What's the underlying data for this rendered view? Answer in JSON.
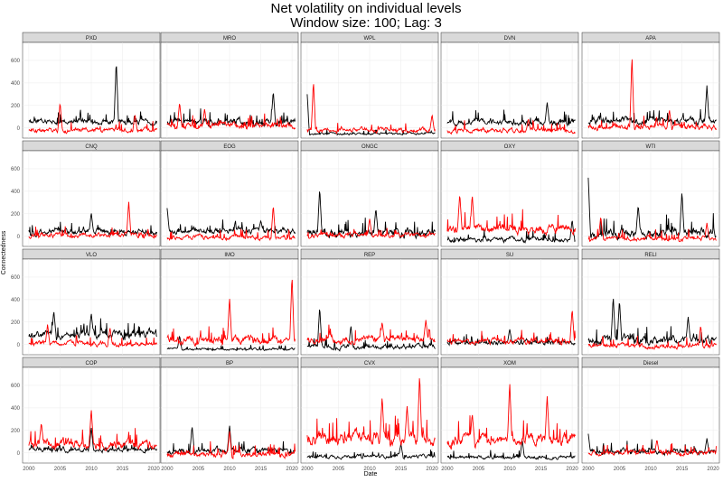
{
  "title_line1": "Net volatility on individual levels",
  "title_line2": "Window size: 100; Lag: 3",
  "xlabel": "Date",
  "ylabel": "Connectedness",
  "colors": {
    "series_a": "#000000",
    "series_b": "#ff0000",
    "strip": "#d9d9d9",
    "grid": "#ebebeb"
  },
  "chart_data": {
    "type": "line",
    "facet_layout": "4 rows x 5 columns, shared axes",
    "x_range": [
      1999,
      2021
    ],
    "y_range": [
      -90,
      760
    ],
    "x_ticks": [
      "2000",
      "2005",
      "2010",
      "2015",
      "2020"
    ],
    "y_ticks": [
      "0",
      "200",
      "400",
      "600"
    ],
    "series_colors": [
      "black",
      "red"
    ],
    "panels": [
      {
        "label": "PXD",
        "black": {
          "base": 60,
          "amp": 50,
          "spikes": [
            [
              2014,
              600
            ]
          ]
        },
        "red": {
          "base": -20,
          "amp": 40,
          "spikes": [
            [
              2005,
              230
            ],
            [
              2017,
              120
            ]
          ]
        }
      },
      {
        "label": "MRO",
        "black": {
          "base": 50,
          "amp": 60,
          "spikes": [
            [
              2017,
              330
            ]
          ]
        },
        "red": {
          "base": 20,
          "amp": 50,
          "spikes": [
            [
              2002,
              230
            ],
            [
              2006,
              170
            ]
          ]
        }
      },
      {
        "label": "WPL",
        "black": {
          "base": -50,
          "amp": 20,
          "spikes": [
            [
              2000,
              300
            ]
          ]
        },
        "red": {
          "base": -20,
          "amp": 40,
          "spikes": [
            [
              2001,
              420
            ],
            [
              2020,
              120
            ]
          ]
        }
      },
      {
        "label": "DVN",
        "black": {
          "base": 50,
          "amp": 50,
          "spikes": [
            [
              2016,
              230
            ]
          ]
        },
        "red": {
          "base": -20,
          "amp": 40,
          "spikes": [
            [
              2013,
              80
            ]
          ]
        }
      },
      {
        "label": "APA",
        "black": {
          "base": 60,
          "amp": 60,
          "spikes": [
            [
              2019,
              380
            ]
          ]
        },
        "red": {
          "base": 10,
          "amp": 50,
          "spikes": [
            [
              2007,
              640
            ],
            [
              2013,
              160
            ]
          ]
        }
      },
      {
        "label": "CNQ",
        "black": {
          "base": 40,
          "amp": 50,
          "spikes": [
            [
              2010,
              210
            ]
          ]
        },
        "red": {
          "base": 10,
          "amp": 40,
          "spikes": [
            [
              2016,
              310
            ]
          ]
        }
      },
      {
        "label": "EOG",
        "black": {
          "base": 50,
          "amp": 50,
          "spikes": [
            [
              2000,
              250
            ],
            [
              2015,
              140
            ]
          ]
        },
        "red": {
          "base": -10,
          "amp": 40,
          "spikes": [
            [
              2017,
              280
            ]
          ]
        }
      },
      {
        "label": "ONGC",
        "black": {
          "base": 30,
          "amp": 70,
          "spikes": [
            [
              2002,
              430
            ],
            [
              2011,
              250
            ]
          ]
        },
        "red": {
          "base": 10,
          "amp": 40,
          "spikes": [
            [
              2010,
              160
            ]
          ]
        }
      },
      {
        "label": "OXY",
        "black": {
          "base": -30,
          "amp": 40,
          "spikes": [
            [
              2020,
              150
            ]
          ]
        },
        "red": {
          "base": 70,
          "amp": 80,
          "spikes": [
            [
              2002,
              380
            ],
            [
              2004,
              370
            ]
          ]
        }
      },
      {
        "label": "WTI",
        "black": {
          "base": 30,
          "amp": 80,
          "spikes": [
            [
              2000,
              520
            ],
            [
              2015,
              400
            ],
            [
              2008,
              280
            ]
          ]
        },
        "red": {
          "base": -20,
          "amp": 40,
          "spikes": [
            [
              2002,
              180
            ],
            [
              2019,
              120
            ]
          ]
        }
      },
      {
        "label": "VLO",
        "black": {
          "base": 90,
          "amp": 70,
          "spikes": [
            [
              2004,
              300
            ],
            [
              2010,
              280
            ]
          ]
        },
        "red": {
          "base": 10,
          "amp": 40,
          "spikes": [
            [
              2003,
              180
            ],
            [
              2013,
              150
            ]
          ]
        }
      },
      {
        "label": "IMO",
        "black": {
          "base": -40,
          "amp": 20,
          "spikes": [
            [
              2002,
              80
            ]
          ]
        },
        "red": {
          "base": 40,
          "amp": 70,
          "spikes": [
            [
              2010,
              420
            ],
            [
              2020,
              620
            ]
          ]
        }
      },
      {
        "label": "REP",
        "black": {
          "base": -20,
          "amp": 40,
          "spikes": [
            [
              2002,
              340
            ],
            [
              2007,
              170
            ]
          ]
        },
        "red": {
          "base": 50,
          "amp": 60,
          "spikes": [
            [
              2012,
              200
            ],
            [
              2019,
              220
            ]
          ]
        }
      },
      {
        "label": "SU",
        "black": {
          "base": 20,
          "amp": 40,
          "spikes": [
            [
              2010,
              140
            ]
          ]
        },
        "red": {
          "base": 30,
          "amp": 50,
          "spikes": [
            [
              2020,
              320
            ]
          ]
        }
      },
      {
        "label": "RELI",
        "black": {
          "base": 40,
          "amp": 70,
          "spikes": [
            [
              2004,
              430
            ],
            [
              2005,
              400
            ],
            [
              2016,
              250
            ]
          ]
        },
        "red": {
          "base": -10,
          "amp": 40,
          "spikes": [
            [
              2018,
              170
            ]
          ]
        }
      },
      {
        "label": "COP",
        "black": {
          "base": 30,
          "amp": 40,
          "spikes": [
            [
              2010,
              230
            ]
          ]
        },
        "red": {
          "base": 80,
          "amp": 80,
          "spikes": [
            [
              2010,
              390
            ],
            [
              2002,
              270
            ]
          ]
        }
      },
      {
        "label": "BP",
        "black": {
          "base": 20,
          "amp": 50,
          "spikes": [
            [
              2004,
              240
            ],
            [
              2010,
              250
            ]
          ]
        },
        "red": {
          "base": -10,
          "amp": 50,
          "spikes": [
            [
              2010,
              200
            ]
          ]
        }
      },
      {
        "label": "CVX",
        "black": {
          "base": -30,
          "amp": 30,
          "spikes": [
            [
              2015,
              80
            ]
          ]
        },
        "red": {
          "base": 130,
          "amp": 110,
          "spikes": [
            [
              2018,
              700
            ],
            [
              2012,
              500
            ],
            [
              2016,
              420
            ]
          ]
        }
      },
      {
        "label": "XOM",
        "black": {
          "base": -40,
          "amp": 30,
          "spikes": [
            [
              2012,
              120
            ]
          ]
        },
        "red": {
          "base": 120,
          "amp": 100,
          "spikes": [
            [
              2010,
              630
            ],
            [
              2016,
              510
            ],
            [
              2004,
              350
            ]
          ]
        }
      },
      {
        "label": "Diesel",
        "black": {
          "base": 10,
          "amp": 50,
          "spikes": [
            [
              2000,
              170
            ],
            [
              2019,
              130
            ]
          ]
        },
        "red": {
          "base": 0,
          "amp": 40,
          "spikes": [
            [
              2011,
              120
            ]
          ]
        }
      }
    ]
  }
}
